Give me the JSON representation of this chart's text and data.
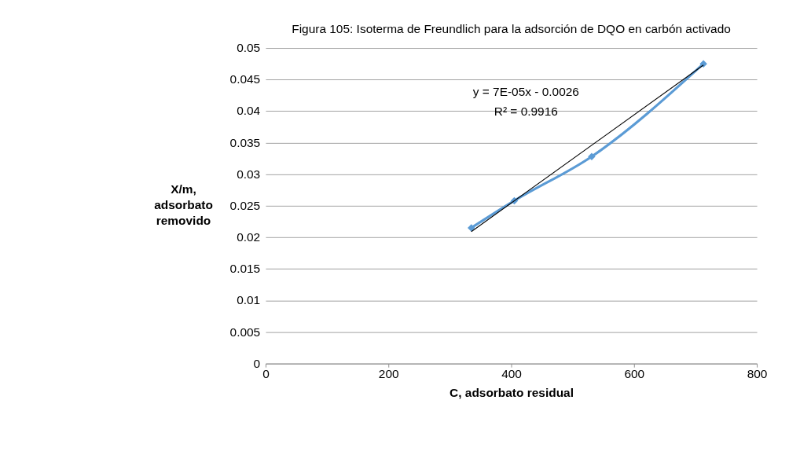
{
  "chart_data": {
    "type": "line",
    "title": "Figura 105: Isoterma de Freundlich para la adsorción de DQO en carbón activado",
    "xlabel": "C, adsorbato residual",
    "ylabel": "X/m, adsorbato removido",
    "series": [
      {
        "color": "#5b9bd5",
        "marker": "diamond",
        "x": [
          335,
          405,
          531,
          713
        ],
        "values": [
          0.0215,
          0.0258,
          0.0328,
          0.0475
        ]
      },
      {
        "type": "line",
        "color": "#000000",
        "marker": "none",
        "x": [
          335,
          713
        ],
        "values": [
          0.0209,
          0.0473
        ]
      }
    ],
    "annotations": [
      "y = 7E-05x - 0.0026",
      "R² = 0.9916"
    ],
    "xlim": [
      0,
      800
    ],
    "xticks": [
      0,
      200,
      400,
      600,
      800
    ],
    "ylim": [
      0,
      0.05
    ],
    "yticks": [
      0,
      0.005,
      0.01,
      0.015,
      0.02,
      0.025,
      0.03,
      0.035,
      0.04,
      0.045,
      0.05
    ],
    "grid": "y"
  }
}
